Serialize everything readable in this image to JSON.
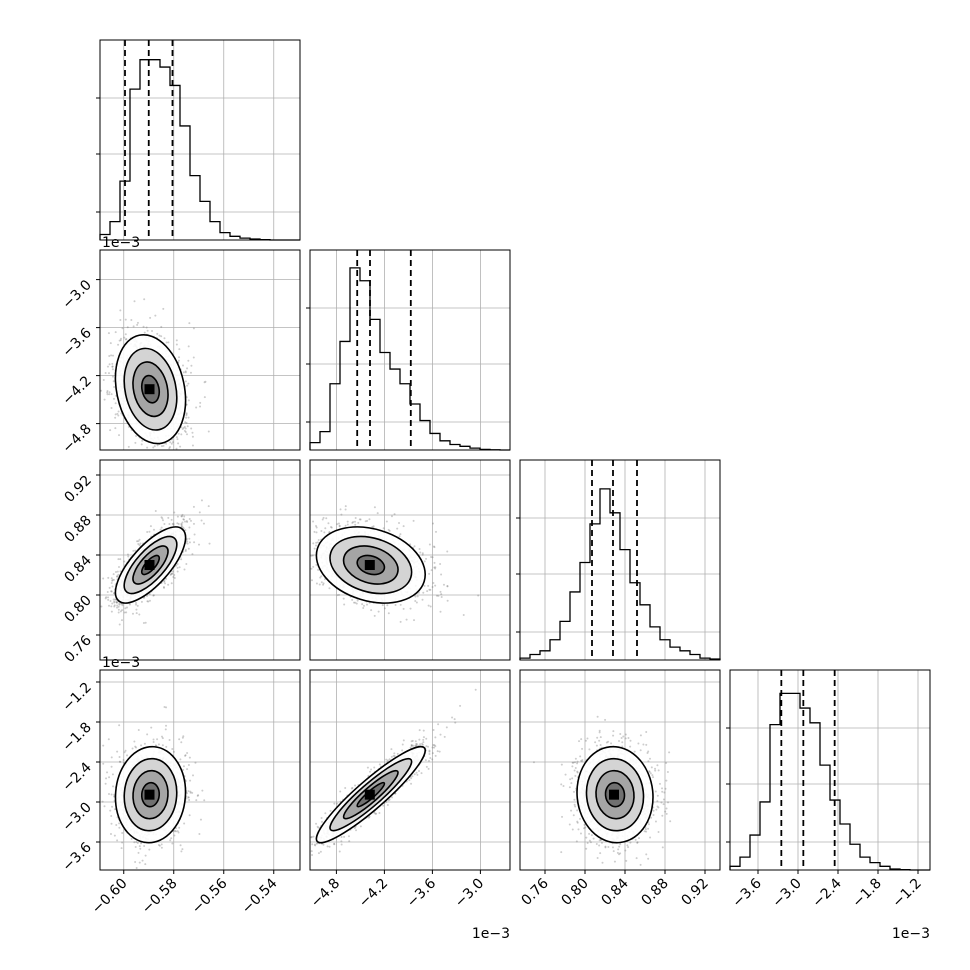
{
  "chart_data": {
    "type": "corner",
    "params": [
      {
        "range": [
          -0.6095,
          -0.5295
        ],
        "ticks": [
          "-0.60",
          "-0.58",
          "-0.56",
          "-0.54"
        ],
        "tick_values": [
          -0.6,
          -0.58,
          -0.56,
          -0.54
        ],
        "offset": "",
        "quantiles": [
          -0.5995,
          -0.59,
          -0.5805
        ]
      },
      {
        "range": [
          -5.13,
          -2.63
        ],
        "ticks": [
          "-4.8",
          "-4.2",
          "-3.6",
          "-3.0"
        ],
        "tick_values": [
          -4.8,
          -4.2,
          -3.6,
          -3.0
        ],
        "offset": "1e-3",
        "quantiles": [
          -4.54,
          -4.38,
          -3.87
        ]
      },
      {
        "range": [
          0.735,
          0.935
        ],
        "ticks": [
          "0.76",
          "0.80",
          "0.84",
          "0.88",
          "0.92"
        ],
        "tick_values": [
          0.76,
          0.8,
          0.84,
          0.88,
          0.92
        ],
        "offset": "",
        "quantiles": [
          0.807,
          0.828,
          0.852
        ]
      },
      {
        "range": [
          -4.02,
          -1.02
        ],
        "ticks": [
          "-3.6",
          "-3.0",
          "-2.4",
          "-1.8",
          "-1.2"
        ],
        "tick_values": [
          -3.6,
          -3.0,
          -2.4,
          -1.8,
          -1.2
        ],
        "offset": "1e-3",
        "quantiles": [
          -3.25,
          -2.92,
          -2.45
        ]
      }
    ],
    "row_offset_labels": [
      "1e-3",
      "",
      "1e-3"
    ],
    "bottom_offset_labels": [
      "",
      "1e-3",
      "",
      "1e-3"
    ],
    "histograms": [
      [
        0.03,
        0.1,
        0.32,
        0.82,
        0.98,
        0.98,
        0.94,
        0.84,
        0.62,
        0.35,
        0.21,
        0.1,
        0.04,
        0.02,
        0.01,
        0.005,
        0.002,
        0,
        0,
        0
      ],
      [
        0.04,
        0.1,
        0.36,
        0.59,
        0.99,
        0.92,
        0.71,
        0.53,
        0.44,
        0.36,
        0.25,
        0.16,
        0.09,
        0.05,
        0.03,
        0.02,
        0.01,
        0.003,
        0.001,
        0
      ],
      [
        0.01,
        0.03,
        0.05,
        0.11,
        0.21,
        0.37,
        0.53,
        0.74,
        0.93,
        0.8,
        0.6,
        0.42,
        0.3,
        0.18,
        0.11,
        0.07,
        0.05,
        0.03,
        0.01,
        0.005
      ],
      [
        0.02,
        0.07,
        0.19,
        0.37,
        0.79,
        0.96,
        0.96,
        0.88,
        0.8,
        0.57,
        0.38,
        0.25,
        0.14,
        0.07,
        0.04,
        0.02,
        0.005,
        0.002,
        0,
        0
      ]
    ],
    "joint": {
      "1-0": {
        "mean": [
          -0.5893,
          -4.37
        ],
        "std": [
          0.007,
          0.34
        ],
        "rho": -0.2
      },
      "2-0": {
        "mean": [
          -0.5893,
          0.83
        ],
        "std": [
          0.007,
          0.019
        ],
        "rho": 0.72
      },
      "2-1": {
        "mean": [
          -4.37,
          0.83
        ],
        "std": [
          0.34,
          0.019
        ],
        "rho": -0.25
      },
      "3-0": {
        "mean": [
          -0.5893,
          -2.89
        ],
        "std": [
          0.007,
          0.36
        ],
        "rho": 0.05
      },
      "3-1": {
        "mean": [
          -4.37,
          -2.89
        ],
        "std": [
          0.34,
          0.36
        ],
        "rho": 0.92
      },
      "3-2": {
        "mean": [
          0.83,
          -2.89
        ],
        "std": [
          0.019,
          0.36
        ],
        "rho": -0.05
      }
    },
    "grid": true,
    "quantile_levels": [
      0.16,
      0.5,
      0.84
    ]
  }
}
